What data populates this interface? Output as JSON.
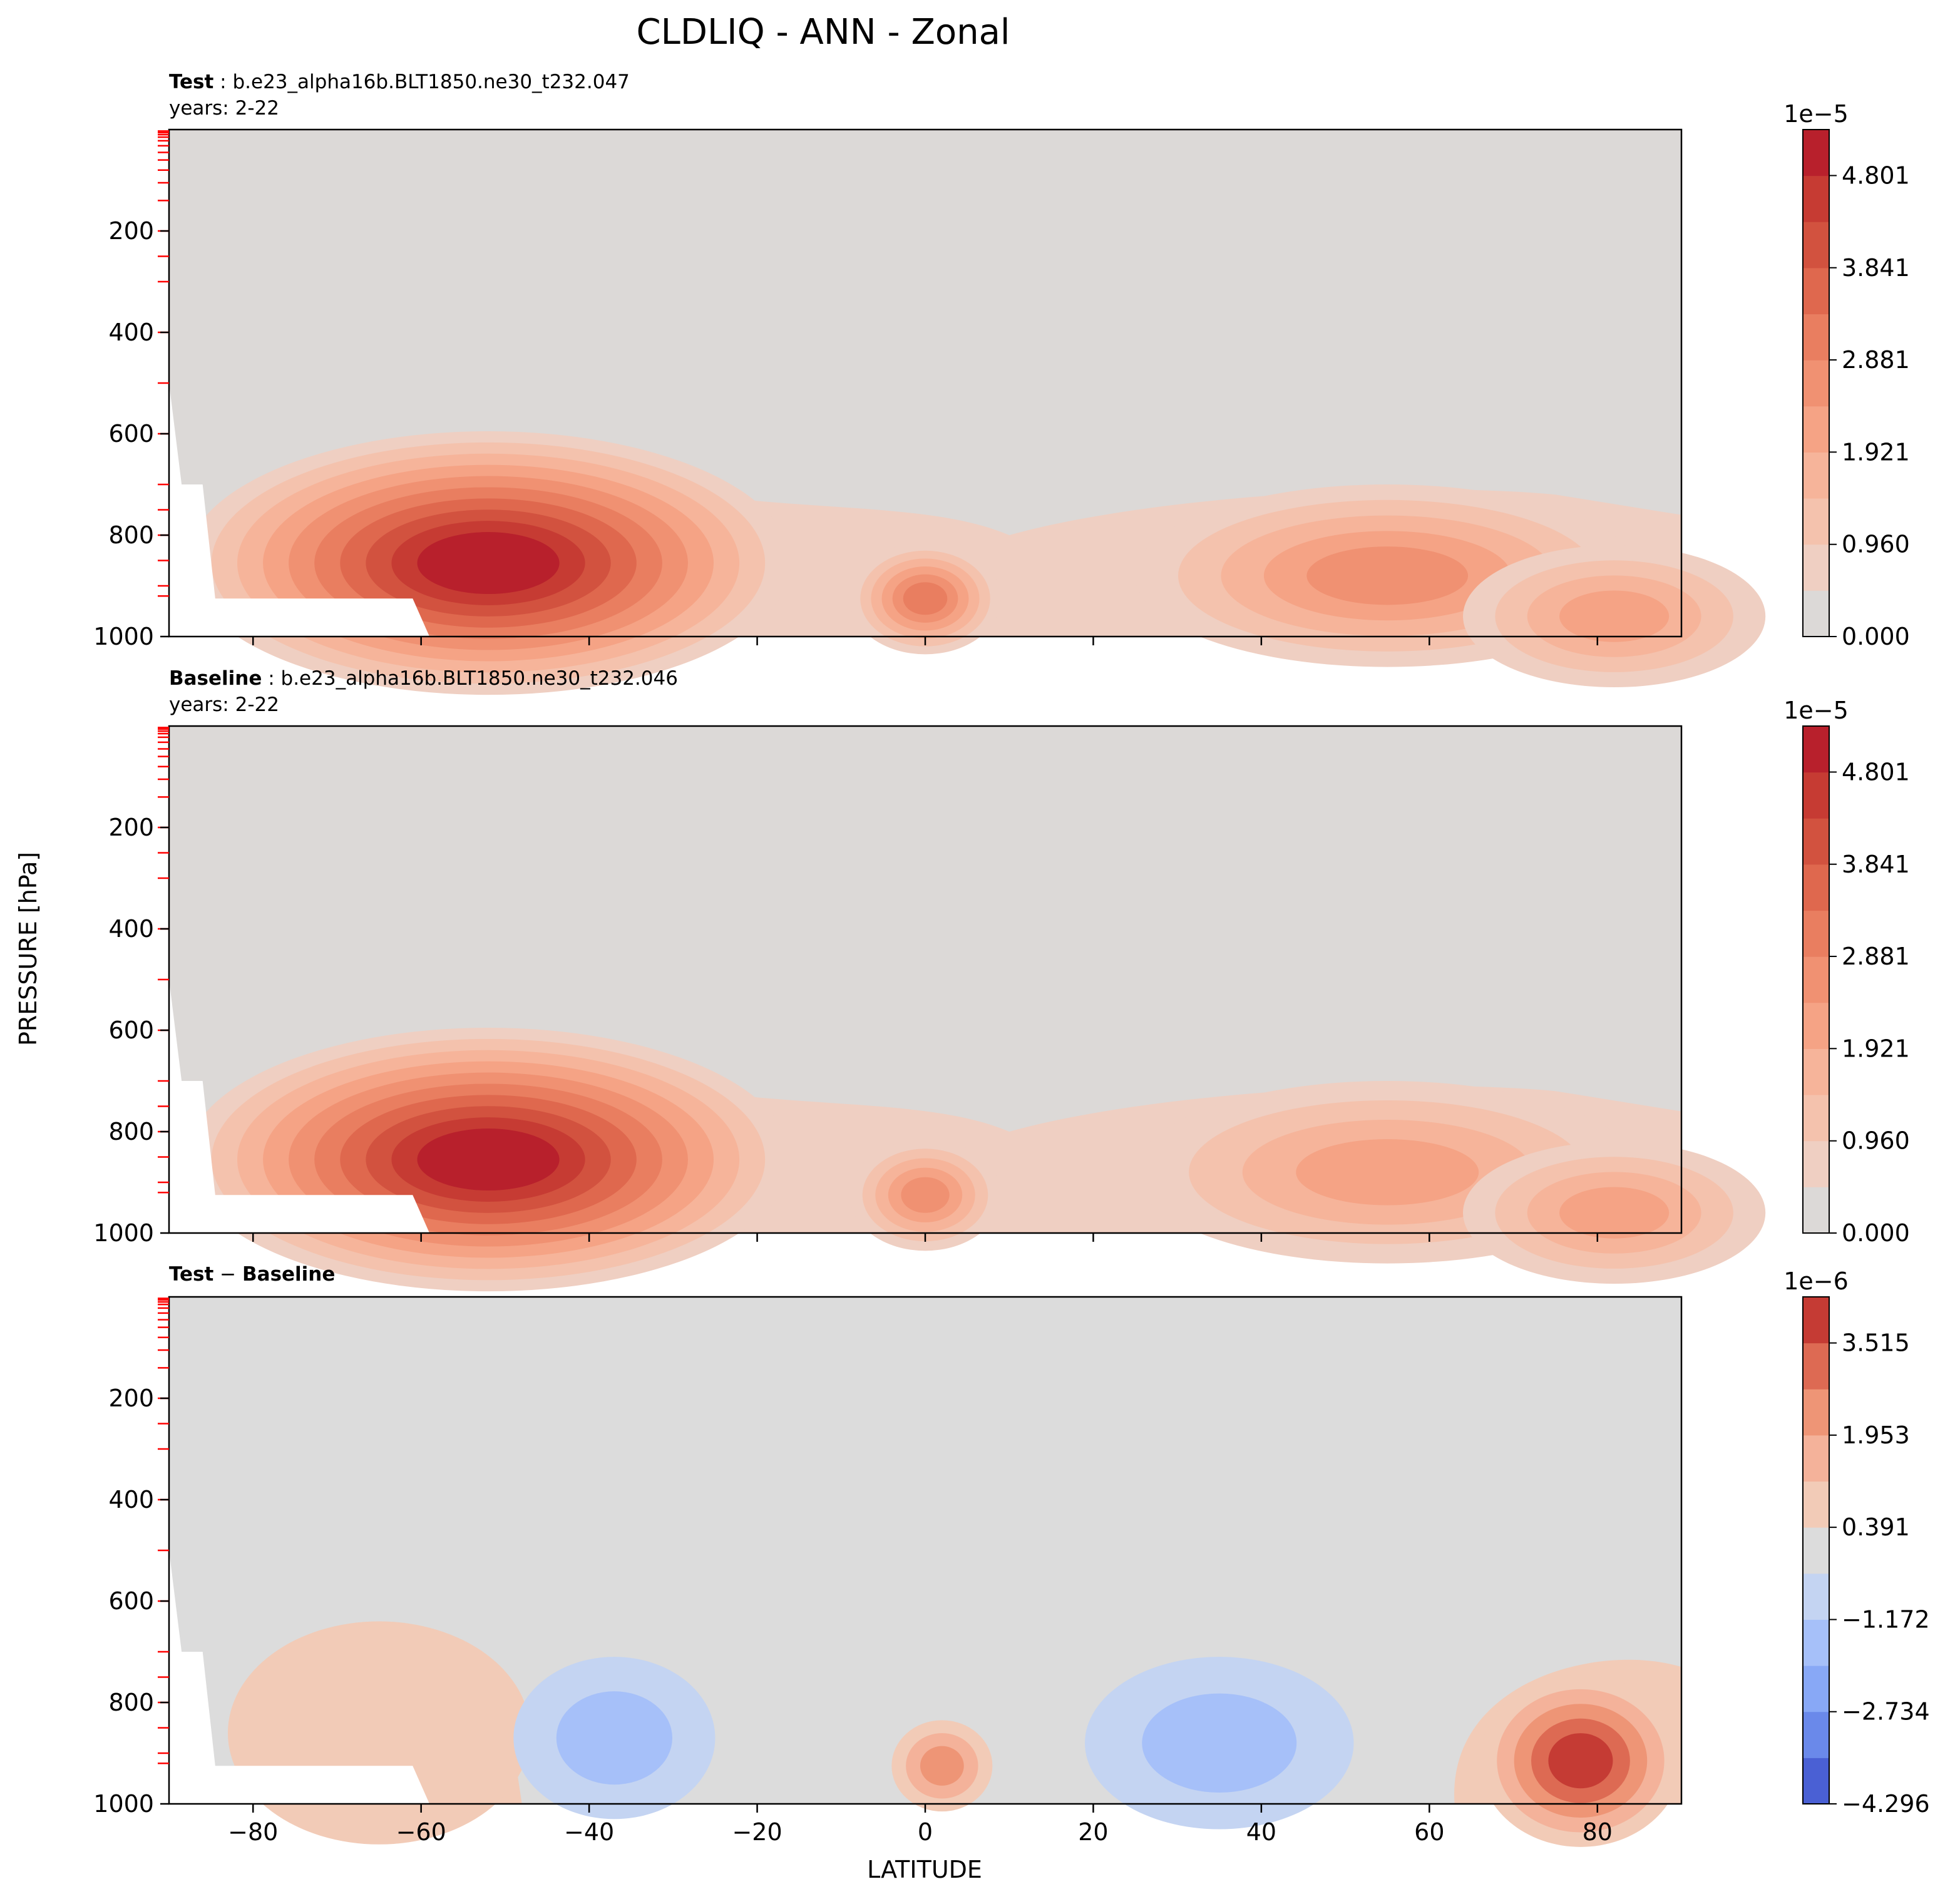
{
  "figure": {
    "title": "CLDLIQ - ANN - Zonal",
    "xlabel": "LATITUDE",
    "ylabel": "PRESSURE [hPa]"
  },
  "chart_data": [
    {
      "type": "contourf",
      "panel": "test",
      "title_bold": "Test",
      "title_rest": " : b.e23_alpha16b.BLT1850.ne30_t232.047",
      "subtitle": "years: 2-22",
      "xlim": [
        -90,
        90
      ],
      "ylim": [
        1000,
        0
      ],
      "x_ticks": [
        -80,
        -60,
        -40,
        -20,
        0,
        20,
        40,
        60,
        80
      ],
      "y_ticks": [
        200,
        400,
        600,
        800,
        1000
      ],
      "colorbar": {
        "exponent": "1e−5",
        "ticks": [
          "0.000",
          "0.960",
          "1.921",
          "2.881",
          "3.841",
          "4.801"
        ],
        "tick_values": [
          0.0,
          0.96,
          1.921,
          2.881,
          3.841,
          4.801
        ],
        "range": [
          0.0,
          5.28
        ],
        "levels": 11,
        "colors": [
          "#dcd9d7",
          "#efcfc2",
          "#f4c2ad",
          "#f6b49a",
          "#f5a385",
          "#f09172",
          "#e97e60",
          "#df684e",
          "#d2523f",
          "#c63b33",
          "#b8202c"
        ]
      },
      "features": [
        {
          "label": "southern-ocean-max",
          "lat": -52,
          "p": 855,
          "value": 5.2
        },
        {
          "label": "equatorial-peak",
          "lat": 0,
          "p": 925,
          "value": 2.9
        },
        {
          "label": "nh-midlat-peak",
          "lat": 55,
          "p": 880,
          "value": 2.6
        },
        {
          "label": "arctic-peak",
          "lat": 82,
          "p": 960,
          "value": 2.4
        }
      ]
    },
    {
      "type": "contourf",
      "panel": "baseline",
      "title_bold": "Baseline",
      "title_rest": " : b.e23_alpha16b.BLT1850.ne30_t232.046",
      "subtitle": "years: 2-22",
      "xlim": [
        -90,
        90
      ],
      "ylim": [
        1000,
        0
      ],
      "x_ticks": [
        -80,
        -60,
        -40,
        -20,
        0,
        20,
        40,
        60,
        80
      ],
      "y_ticks": [
        200,
        400,
        600,
        800,
        1000
      ],
      "colorbar": {
        "exponent": "1e−5",
        "ticks": [
          "0.000",
          "0.960",
          "1.921",
          "2.881",
          "3.841",
          "4.801"
        ],
        "tick_values": [
          0.0,
          0.96,
          1.921,
          2.881,
          3.841,
          4.801
        ],
        "range": [
          0.0,
          5.28
        ],
        "levels": 11,
        "colors": [
          "#dcd9d7",
          "#efcfc2",
          "#f4c2ad",
          "#f6b49a",
          "#f5a385",
          "#f09172",
          "#e97e60",
          "#df684e",
          "#d2523f",
          "#c63b33",
          "#b8202c"
        ]
      },
      "features": [
        {
          "label": "southern-ocean-max",
          "lat": -52,
          "p": 855,
          "value": 5.2
        },
        {
          "label": "equatorial-peak",
          "lat": 0,
          "p": 925,
          "value": 2.7
        },
        {
          "label": "nh-midlat-peak",
          "lat": 55,
          "p": 880,
          "value": 2.4
        },
        {
          "label": "arctic-peak",
          "lat": 82,
          "p": 960,
          "value": 2.2
        }
      ]
    },
    {
      "type": "contourf",
      "panel": "difference",
      "title_bold_1": "Test",
      "title_mid": " − ",
      "title_bold_2": "Baseline",
      "subtitle": "",
      "xlim": [
        -90,
        90
      ],
      "ylim": [
        1000,
        0
      ],
      "x_ticks": [
        -80,
        -60,
        -40,
        -20,
        0,
        20,
        40,
        60,
        80
      ],
      "y_ticks": [
        200,
        400,
        600,
        800,
        1000
      ],
      "colorbar": {
        "exponent": "1e−6",
        "ticks": [
          "−4.296",
          "−2.734",
          "−1.172",
          "0.391",
          "1.953",
          "3.515"
        ],
        "tick_values": [
          -4.296,
          -2.734,
          -1.172,
          0.391,
          1.953,
          3.515
        ],
        "range": [
          -4.296,
          4.296
        ],
        "levels": 11,
        "colors": [
          "#4a60d4",
          "#6a89ea",
          "#88a8f6",
          "#a6c0f9",
          "#c4d4f2",
          "#dcdcdc",
          "#f2cbb7",
          "#f4b29a",
          "#ee9576",
          "#dd6a53",
          "#c53b34"
        ]
      },
      "features": [
        {
          "label": "sh-midlat-positive",
          "lat": -65,
          "p": 860,
          "value": 0.9
        },
        {
          "label": "sh-subtropic-negative",
          "lat": -37,
          "p": 870,
          "value": -1.9
        },
        {
          "label": "equator-positive",
          "lat": 2,
          "p": 925,
          "value": 2.5
        },
        {
          "label": "nh-midlat-negative",
          "lat": 35,
          "p": 880,
          "value": -1.5
        },
        {
          "label": "arctic-positive",
          "lat": 78,
          "p": 915,
          "value": 3.9
        }
      ]
    }
  ]
}
